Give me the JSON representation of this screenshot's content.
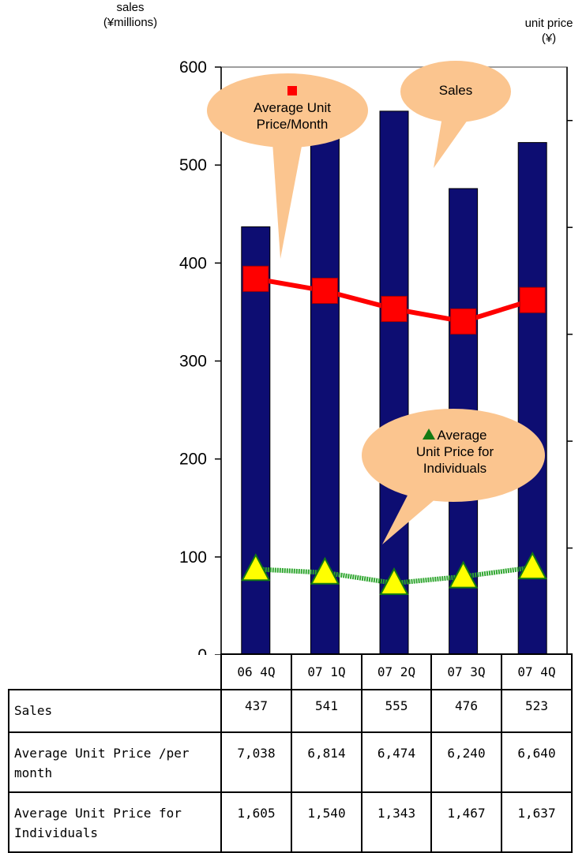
{
  "axes": {
    "left_title_line1": "sales",
    "left_title_line2": "(¥millions)",
    "right_title_line1": "unit price",
    "right_title_line2": "(¥)"
  },
  "callouts": {
    "avg_price_month_line1": "Average Unit",
    "avg_price_month_line2": "Price/Month",
    "sales": "Sales",
    "avg_price_indiv_line1": "Average",
    "avg_price_indiv_line2": "Unit Price for",
    "avg_price_indiv_line3": "Individuals"
  },
  "colors": {
    "bar": "#0d0d72",
    "price_line": "#ff0000",
    "indiv_line": "#2fa62f",
    "indiv_marker": "#ffff00",
    "callout": "#fbc58f"
  },
  "chart_data": {
    "type": "bar",
    "categories": [
      "06 4Q",
      "07 1Q",
      "07 2Q",
      "07 3Q",
      "07 4Q"
    ],
    "ylim": [
      0,
      600
    ],
    "yticks": [
      0,
      100,
      200,
      300,
      400,
      500,
      600
    ],
    "series": [
      {
        "name": "Sales",
        "type": "bar",
        "axis": "left",
        "values": [
          437,
          541,
          555,
          476,
          523
        ]
      },
      {
        "name": "Average Unit Price/Month",
        "type": "line",
        "axis": "right",
        "values": [
          7038,
          6814,
          6474,
          6240,
          6640
        ]
      },
      {
        "name": "Average Unit Price for Individuals",
        "type": "line",
        "axis": "right",
        "values": [
          1605,
          1540,
          1343,
          1467,
          1637
        ]
      }
    ],
    "right_axis_range": [
      0,
      11000
    ]
  },
  "table": {
    "rows": [
      {
        "label": "Sales",
        "values": [
          "437",
          "541",
          "555",
          "476",
          "523"
        ]
      },
      {
        "label_line1": "Average Unit Price /per",
        "label_line2": "month",
        "values": [
          "7,038",
          "6,814",
          "6,474",
          "6,240",
          "6,640"
        ]
      },
      {
        "label_line1": "Average Unit Price for",
        "label_line2": "Individuals",
        "values": [
          "1,605",
          "1,540",
          "1,343",
          "1,467",
          "1,637"
        ]
      }
    ]
  }
}
